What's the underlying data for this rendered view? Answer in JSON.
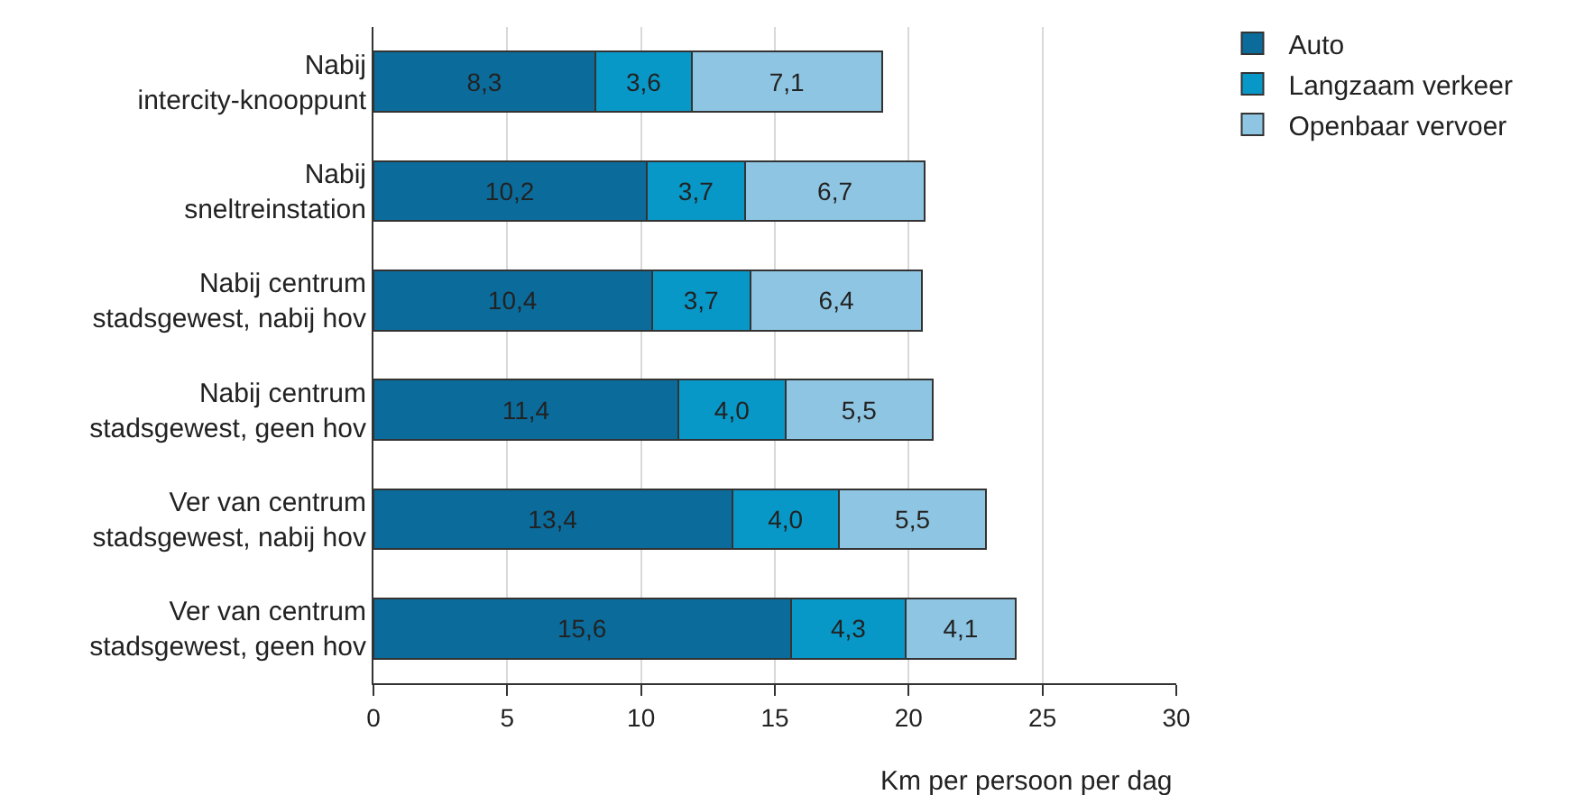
{
  "chart_data": {
    "type": "bar",
    "orientation": "horizontal",
    "stacked": true,
    "categories": [
      "Nabij\nintercity-knooppunt",
      "Nabij\nsneltreinstation",
      "Nabij centrum\nstadsgewest, nabij hov",
      "Nabij centrum\nstadsgewest, geen hov",
      "Ver van centrum\nstadsgewest, nabij hov",
      "Ver van centrum\nstadsgewest, geen hov"
    ],
    "series": [
      {
        "name": "Auto",
        "color": "#0b6c9c",
        "values": [
          8.3,
          10.2,
          10.4,
          11.4,
          13.4,
          15.6
        ],
        "value_labels": [
          "8,3",
          "10,2",
          "10,4",
          "11,4",
          "13,4",
          "15,6"
        ]
      },
      {
        "name": "Langzaam verkeer",
        "color": "#0898c8",
        "values": [
          3.6,
          3.7,
          3.7,
          4.0,
          4.0,
          4.3
        ],
        "value_labels": [
          "3,6",
          "3,7",
          "3,7",
          "4,0",
          "4,0",
          "4,3"
        ]
      },
      {
        "name": "Openbaar vervoer",
        "color": "#8ec5e2",
        "values": [
          7.1,
          6.7,
          6.4,
          5.5,
          5.5,
          4.1
        ],
        "value_labels": [
          "7,1",
          "6,7",
          "6,4",
          "5,5",
          "5,5",
          "4,1"
        ]
      }
    ],
    "xlabel": "Km per persoon per dag",
    "xlim": [
      0,
      30
    ],
    "xticks": [
      0,
      5,
      10,
      15,
      20,
      25,
      30
    ],
    "grid": "x",
    "legend": "top right"
  }
}
